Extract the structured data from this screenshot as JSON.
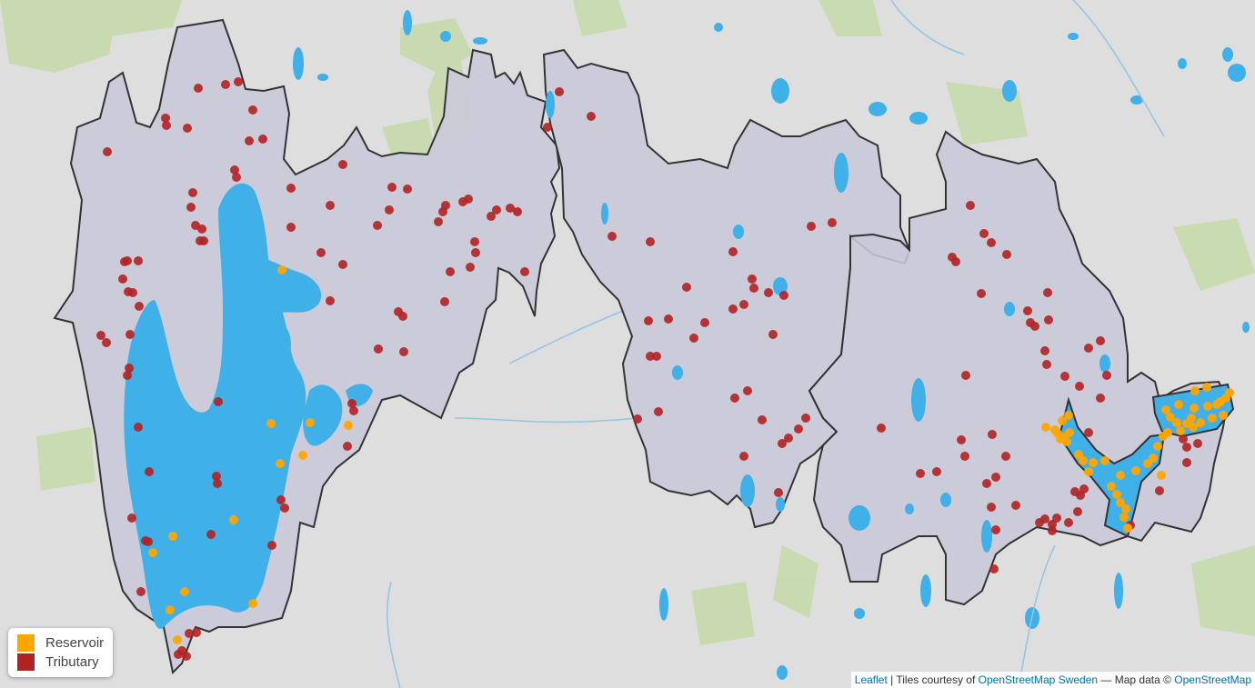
{
  "legend": {
    "items": [
      {
        "label": "Reservoir",
        "color": "#ffa500"
      },
      {
        "label": "Tributary",
        "color": "#b22222"
      }
    ]
  },
  "attribution": {
    "leaflet": "Leaflet",
    "sep1": " | Tiles courtesy of ",
    "osm_sweden": "OpenStreetMap Sweden",
    "sep2": " — Map data © ",
    "osm": "OpenStreetMap"
  },
  "colors": {
    "land": "#dedede",
    "greenery": "#c4d9a8",
    "water": "#3fb0e8",
    "watershed_fill": "#c9c8d9",
    "boundary": "#333333",
    "reservoir": "#ffa500",
    "tributary": "#b22222"
  },
  "icons": {
    "map-tiles": "basemap",
    "watershed": "polygon"
  }
}
